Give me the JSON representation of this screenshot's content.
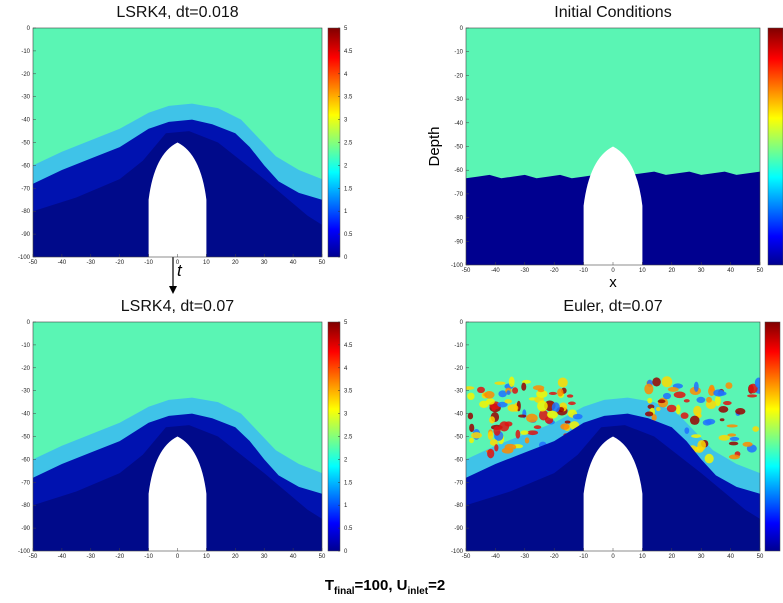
{
  "panels": [
    {
      "title": "LSRK4, dt=0.018",
      "xlim": [
        -50,
        50
      ],
      "ylim": [
        -100,
        0
      ],
      "xticks": [
        -50,
        -40,
        -30,
        -20,
        -10,
        0,
        10,
        20,
        30,
        40,
        50
      ],
      "yticks": [
        0,
        -10,
        -20,
        -30,
        -40,
        -50,
        -60,
        -70,
        -80,
        -90,
        -100
      ],
      "colorbar_lim": [
        0,
        5
      ],
      "colorbar_ticks": [
        0,
        0.5,
        1,
        1.5,
        2,
        2.5,
        3,
        3.5,
        4,
        4.5,
        5
      ]
    },
    {
      "title": "Initial Conditions",
      "xlim": [
        -50,
        50
      ],
      "ylim": [
        -100,
        0
      ],
      "xticks": [
        -50,
        -40,
        -30,
        -20,
        -10,
        0,
        10,
        20,
        30,
        40,
        50
      ],
      "yticks": [
        0,
        -10,
        -20,
        -30,
        -40,
        -50,
        -60,
        -70,
        -80,
        -90,
        -100
      ],
      "xlabel": "x",
      "ylabel": "Depth"
    },
    {
      "title": "LSRK4, dt=0.07",
      "xlim": [
        -50,
        50
      ],
      "ylim": [
        -100,
        0
      ],
      "xticks": [
        -50,
        -40,
        -30,
        -20,
        -10,
        0,
        10,
        20,
        30,
        40,
        50
      ],
      "yticks": [
        0,
        -10,
        -20,
        -30,
        -40,
        -50,
        -60,
        -70,
        -80,
        -90,
        -100
      ],
      "colorbar_lim": [
        0,
        5
      ],
      "colorbar_ticks": [
        0,
        0.5,
        1,
        1.5,
        2,
        2.5,
        3,
        3.5,
        4,
        4.5,
        5
      ]
    },
    {
      "title": "Euler, dt=0.07",
      "xlim": [
        -50,
        50
      ],
      "ylim": [
        -100,
        0
      ],
      "xticks": [
        -50,
        -40,
        -30,
        -20,
        -10,
        0,
        10,
        20,
        30,
        40,
        50
      ],
      "yticks": [
        0,
        -10,
        -20,
        -30,
        -40,
        -50,
        -60,
        -70,
        -80,
        -90,
        -100
      ]
    }
  ],
  "time_arrow": "t",
  "caption": [
    "T",
    "final",
    "=100, U",
    "inlet",
    "=2"
  ]
}
